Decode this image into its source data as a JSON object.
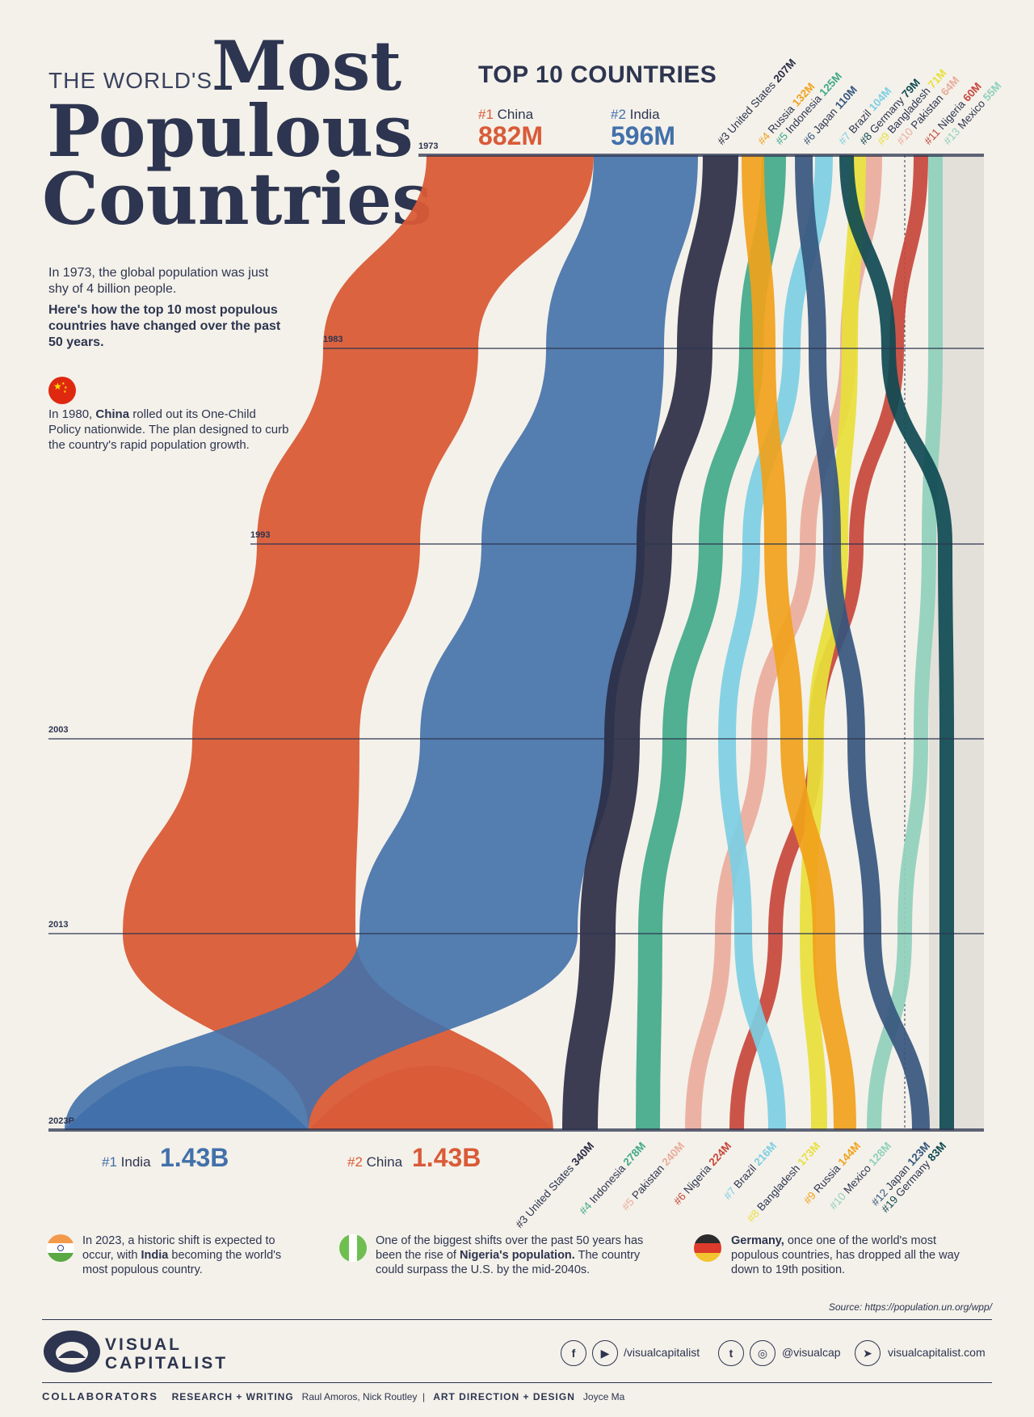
{
  "title": {
    "prefix": "THE WORLD'S",
    "line1": "Most",
    "line2": "Populous",
    "line3": "Countries"
  },
  "intro": {
    "p1": "In 1973, the global population was just shy of 4 billion people.",
    "p2": "Here's how the top 10 most populous countries have changed over the past 50 years.",
    "china_note_pre": "In 1980, ",
    "china_note_bold": "China",
    "china_note_post": " rolled out its One-Child Policy nationwide. The plan designed to curb the country's rapid population growth."
  },
  "chart_header": "TOP 10 COUNTRIES",
  "top_start": [
    {
      "rank": "#1",
      "name": "China",
      "value": "882M"
    },
    {
      "rank": "#2",
      "name": "India",
      "value": "596M"
    }
  ],
  "top_end": [
    {
      "rank": "#1",
      "name": "India",
      "value": "1.43B"
    },
    {
      "rank": "#2",
      "name": "China",
      "value": "1.43B"
    }
  ],
  "chart_data": {
    "type": "bump-area",
    "years": [
      "1973",
      "1983",
      "1993",
      "2003",
      "2013",
      "2023P"
    ],
    "start_labels": [
      {
        "rank": "#3",
        "name": "United States",
        "value": "207M",
        "color": "#2b2d45"
      },
      {
        "rank": "#4",
        "name": "Russia",
        "value": "132M",
        "color": "#f0a21b"
      },
      {
        "rank": "#5",
        "name": "Indonesia",
        "value": "125M",
        "color": "#42a98a"
      },
      {
        "rank": "#6",
        "name": "Japan",
        "value": "110M",
        "color": "#36567e"
      },
      {
        "rank": "#7",
        "name": "Brazil",
        "value": "104M",
        "color": "#7ccfe3"
      },
      {
        "rank": "#8",
        "name": "Germany",
        "value": "79M",
        "color": "#0f4a52"
      },
      {
        "rank": "#9",
        "name": "Bangladesh",
        "value": "71M",
        "color": "#e8df3b"
      },
      {
        "rank": "#10",
        "name": "Pakistan",
        "value": "64M",
        "color": "#e9ad9c"
      },
      {
        "rank": "#11",
        "name": "Nigeria",
        "value": "60M",
        "color": "#c7473b"
      },
      {
        "rank": "#13",
        "name": "Mexico",
        "value": "55M",
        "color": "#8fd0bc"
      }
    ],
    "end_labels": [
      {
        "rank": "#3",
        "name": "United States",
        "value": "340M",
        "color": "#2b2d45"
      },
      {
        "rank": "#4",
        "name": "Indonesia",
        "value": "278M",
        "color": "#42a98a"
      },
      {
        "rank": "#5",
        "name": "Pakistan",
        "value": "240M",
        "color": "#e9ad9c"
      },
      {
        "rank": "#6",
        "name": "Nigeria",
        "value": "224M",
        "color": "#c7473b"
      },
      {
        "rank": "#7",
        "name": "Brazil",
        "value": "216M",
        "color": "#7ccfe3"
      },
      {
        "rank": "#8",
        "name": "Bangladesh",
        "value": "173M",
        "color": "#e8df3b"
      },
      {
        "rank": "#9",
        "name": "Russia",
        "value": "144M",
        "color": "#f0a21b"
      },
      {
        "rank": "#10",
        "name": "Mexico",
        "value": "128M",
        "color": "#8fd0bc"
      },
      {
        "rank": "#12",
        "name": "Japan",
        "value": "123M",
        "color": "#36567e"
      },
      {
        "rank": "#19",
        "name": "Germany",
        "value": "83M",
        "color": "#0f4a52"
      }
    ],
    "colors": {
      "china": "#d95b37",
      "india": "#4270aa"
    }
  },
  "notes": [
    {
      "pre": "In 2023, a historic shift is expected to occur, with ",
      "bold": "India",
      "post": " becoming the world's most populous country."
    },
    {
      "pre": "One of the biggest shifts over the past 50 years has been the rise of ",
      "bold": "Nigeria's population.",
      "post": " The country could surpass the U.S. by the mid-2040s."
    },
    {
      "pre": "",
      "bold": "Germany,",
      "post": " once one of the world's most populous countries, has dropped all the way down to 19th position."
    }
  ],
  "source": "Source: https://population.un.org/wpp/",
  "footer": {
    "logo_line1": "VISUAL",
    "logo_line2": "CAPITALIST",
    "facebook_handle": "/visualcapitalist",
    "twitter_handle": "@visualcap",
    "website": "visualcapitalist.com",
    "collab_label": "COLLABORATORS",
    "research_label": "RESEARCH + WRITING",
    "research_names": "Raul Amoros, Nick Routley",
    "design_label": "ART DIRECTION + DESIGN",
    "design_names": "Joyce Ma"
  }
}
